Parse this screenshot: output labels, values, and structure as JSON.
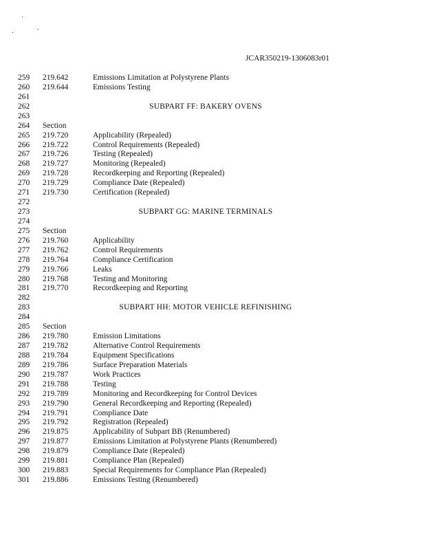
{
  "header": {
    "doc_id": "JCAR350219-1306083r01"
  },
  "lines": [
    {
      "n": "259",
      "sec": "219.642",
      "title": "Emissions Limitation at Polystyrene Plants"
    },
    {
      "n": "260",
      "sec": "219.644",
      "title": "Emissions Testing"
    },
    {
      "n": "261"
    },
    {
      "n": "262",
      "heading": "SUBPART FF:  BAKERY OVENS"
    },
    {
      "n": "263"
    },
    {
      "n": "264",
      "sec": "Section"
    },
    {
      "n": "265",
      "sec": "219.720",
      "title": "Applicability (Repealed)"
    },
    {
      "n": "266",
      "sec": "219.722",
      "title": "Control Requirements (Repealed)"
    },
    {
      "n": "267",
      "sec": "219.726",
      "title": "Testing (Repealed)"
    },
    {
      "n": "268",
      "sec": "219.727",
      "title": "Monitoring (Repealed)"
    },
    {
      "n": "269",
      "sec": "219.728",
      "title": "Recordkeeping and Reporting (Repealed)"
    },
    {
      "n": "270",
      "sec": "219.729",
      "title": "Compliance Date (Repealed)"
    },
    {
      "n": "271",
      "sec": "219.730",
      "title": "Certification (Repealed)"
    },
    {
      "n": "272"
    },
    {
      "n": "273",
      "heading": "SUBPART GG:  MARINE TERMINALS"
    },
    {
      "n": "274"
    },
    {
      "n": "275",
      "sec": "Section"
    },
    {
      "n": "276",
      "sec": "219.760",
      "title": "Applicability"
    },
    {
      "n": "277",
      "sec": "219.762",
      "title": "Control Requirements"
    },
    {
      "n": "278",
      "sec": "219.764",
      "title": "Compliance Certification"
    },
    {
      "n": "279",
      "sec": "219.766",
      "title": "Leaks"
    },
    {
      "n": "280",
      "sec": "219.768",
      "title": "Testing and Monitoring"
    },
    {
      "n": "281",
      "sec": "219.770",
      "title": "Recordkeeping and Reporting"
    },
    {
      "n": "282"
    },
    {
      "n": "283",
      "heading": "SUBPART HH:  MOTOR VEHICLE REFINISHING"
    },
    {
      "n": "284"
    },
    {
      "n": "285",
      "sec": "Section"
    },
    {
      "n": "286",
      "sec": "219.780",
      "title": "Emission Limitations"
    },
    {
      "n": "287",
      "sec": "219.782",
      "title": "Alternative Control Requirements"
    },
    {
      "n": "288",
      "sec": "219.784",
      "title": "Equipment Specifications"
    },
    {
      "n": "289",
      "sec": "219.786",
      "title": "Surface Preparation Materials"
    },
    {
      "n": "290",
      "sec": "219.787",
      "title": "Work Practices"
    },
    {
      "n": "291",
      "sec": "219.788",
      "title": "Testing"
    },
    {
      "n": "292",
      "sec": "219.789",
      "title": "Monitoring and Recordkeeping for Control Devices"
    },
    {
      "n": "293",
      "sec": "219.790",
      "title": "General Recordkeeping and Reporting (Repealed)"
    },
    {
      "n": "294",
      "sec": "219.791",
      "title": "Compliance Date"
    },
    {
      "n": "295",
      "sec": "219.792",
      "title": "Registration (Repealed)"
    },
    {
      "n": "296",
      "sec": "219.875",
      "title": "Applicability of Subpart BB (Renumbered)"
    },
    {
      "n": "297",
      "sec": "219.877",
      "title": "Emissions Limitation at Polystyrene Plants (Renumbered)"
    },
    {
      "n": "298",
      "sec": "219.879",
      "title": "Compliance Date (Repealed)"
    },
    {
      "n": "299",
      "sec": "219.881",
      "title": "Compliance Plan (Repealed)"
    },
    {
      "n": "300",
      "sec": "219.883",
      "title": "Special Requirements for Compliance Plan (Repealed)"
    },
    {
      "n": "301",
      "sec": "219.886",
      "title": "Emissions Testing (Renumbered)"
    }
  ]
}
